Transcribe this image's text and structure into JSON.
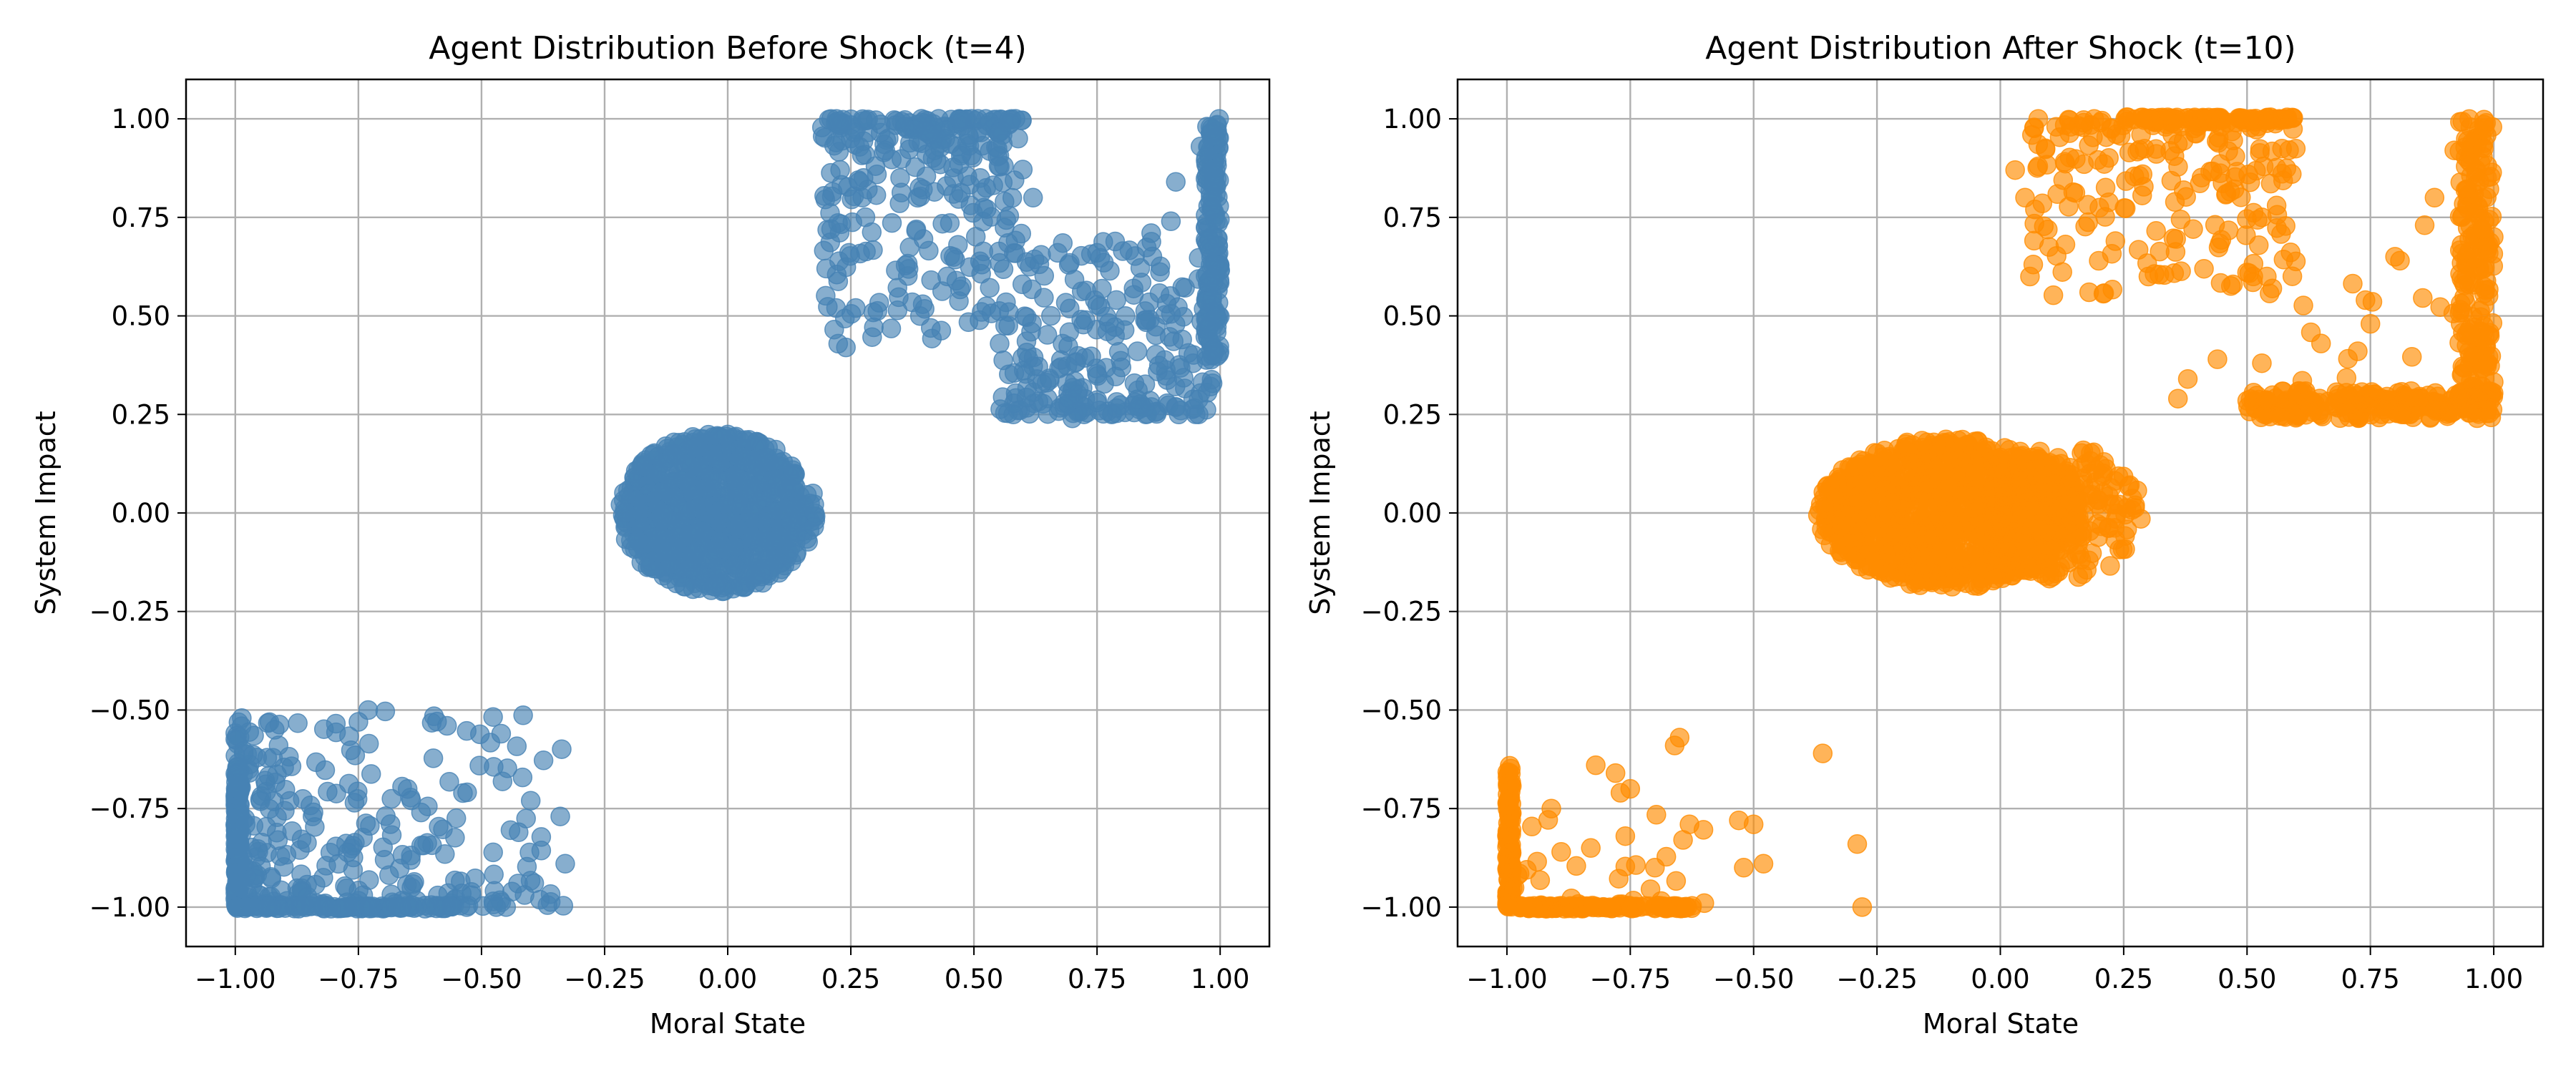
{
  "chart_data": [
    {
      "type": "scatter",
      "title": "Agent Distribution Before Shock (t=4)",
      "xlabel": "Moral State",
      "ylabel": "System Impact",
      "xlim": [
        -1.1,
        1.1
      ],
      "ylim": [
        -1.1,
        1.1
      ],
      "grid": true,
      "color": "#4682b4",
      "alpha": 0.65,
      "x_ticks": [
        -1.0,
        -0.75,
        -0.5,
        -0.25,
        0.0,
        0.25,
        0.5,
        0.75,
        1.0
      ],
      "y_ticks": [
        -1.0,
        -0.75,
        -0.5,
        -0.25,
        0.0,
        0.25,
        0.5,
        0.75,
        1.0
      ],
      "x_tick_labels": [
        "−1.00",
        "−0.75",
        "−0.50",
        "−0.25",
        "0.00",
        "0.25",
        "0.50",
        "0.75",
        "1.00"
      ],
      "y_tick_labels": [
        "−1.00",
        "−0.75",
        "−0.50",
        "−0.25",
        "0.00",
        "0.25",
        "0.50",
        "0.75",
        "1.00"
      ],
      "clusters": [
        {
          "shape": "ellipse",
          "center": [
            -0.02,
            0.0
          ],
          "radii": [
            0.2,
            0.2
          ],
          "count": 900
        },
        {
          "shape": "box",
          "x": [
            -1.0,
            -0.33
          ],
          "y": [
            -1.0,
            -0.5
          ],
          "count": 300,
          "skew": "low-left"
        },
        {
          "shape": "box",
          "x": [
            -1.0,
            -0.99
          ],
          "y": [
            -1.0,
            -0.64
          ],
          "count": 110
        },
        {
          "shape": "hline",
          "x": [
            -1.0,
            -0.55
          ],
          "y": -1.0,
          "count": 90
        },
        {
          "shape": "box",
          "x": [
            0.19,
            0.6
          ],
          "y": [
            0.42,
            1.0
          ],
          "count": 280,
          "skew": "high"
        },
        {
          "shape": "box",
          "x": [
            0.55,
            1.0
          ],
          "y": [
            0.25,
            0.7
          ],
          "count": 240,
          "skew": "low"
        },
        {
          "shape": "box",
          "x": [
            0.97,
            1.0
          ],
          "y": [
            0.38,
            1.0
          ],
          "count": 160
        }
      ],
      "points": [
        [
          -0.92,
          -0.55
        ],
        [
          -0.73,
          -0.5
        ],
        [
          -0.75,
          -0.53
        ],
        [
          -0.57,
          -0.54
        ],
        [
          -0.46,
          -0.56
        ],
        [
          -0.45,
          -1.0
        ],
        [
          -0.47,
          -1.0
        ],
        [
          -0.34,
          -0.77
        ],
        [
          -0.33,
          -0.89
        ],
        [
          -0.4,
          -0.73
        ],
        [
          -0.52,
          -0.97
        ],
        [
          -0.53,
          -1.0
        ],
        [
          0.24,
          0.42
        ],
        [
          0.47,
          1.0
        ],
        [
          0.59,
          0.95
        ],
        [
          0.41,
          0.96
        ],
        [
          0.22,
          0.94
        ],
        [
          0.25,
          0.95
        ],
        [
          0.67,
          0.66
        ],
        [
          0.75,
          0.66
        ],
        [
          0.86,
          0.71
        ],
        [
          0.9,
          0.74
        ],
        [
          0.91,
          0.84
        ],
        [
          0.96,
          0.93
        ],
        [
          0.85,
          0.49
        ],
        [
          0.62,
          0.8
        ],
        [
          0.55,
          0.88
        ],
        [
          0.42,
          0.92
        ],
        [
          0.35,
          0.85
        ],
        [
          0.32,
          0.92
        ],
        [
          0.3,
          0.88
        ],
        [
          0.21,
          0.72
        ],
        [
          0.2,
          0.62
        ],
        [
          0.22,
          0.52
        ],
        [
          0.26,
          0.52
        ],
        [
          0.58,
          0.25
        ],
        [
          0.7,
          0.24
        ],
        [
          0.78,
          0.25
        ],
        [
          0.92,
          0.26
        ],
        [
          0.75,
          0.28
        ]
      ]
    },
    {
      "type": "scatter",
      "title": "Agent Distribution After Shock (t=10)",
      "xlabel": "Moral State",
      "ylabel": "System Impact",
      "xlim": [
        -1.1,
        1.1
      ],
      "ylim": [
        -1.1,
        1.1
      ],
      "grid": true,
      "color": "#ff8c00",
      "alpha": 0.65,
      "x_ticks": [
        -1.0,
        -0.75,
        -0.5,
        -0.25,
        0.0,
        0.25,
        0.5,
        0.75,
        1.0
      ],
      "y_ticks": [
        -1.0,
        -0.75,
        -0.5,
        -0.25,
        0.0,
        0.25,
        0.5,
        0.75,
        1.0
      ],
      "x_tick_labels": [
        "−1.00",
        "−0.75",
        "−0.50",
        "−0.25",
        "0.00",
        "0.25",
        "0.50",
        "0.75",
        "1.00"
      ],
      "y_tick_labels": [
        "−1.00",
        "−0.75",
        "−0.50",
        "−0.25",
        "0.00",
        "0.25",
        "0.50",
        "0.75",
        "1.00"
      ],
      "clusters": [
        {
          "shape": "ellipse",
          "center": [
            -0.1,
            0.0
          ],
          "radii": [
            0.27,
            0.19
          ],
          "count": 1100
        },
        {
          "shape": "ellipse",
          "center": [
            0.12,
            0.0
          ],
          "radii": [
            0.17,
            0.17
          ],
          "count": 180
        },
        {
          "shape": "box",
          "x": [
            -1.0,
            -0.99
          ],
          "y": [
            -1.0,
            -0.64
          ],
          "count": 110
        },
        {
          "shape": "hline",
          "x": [
            -1.0,
            -0.62
          ],
          "y": -1.0,
          "count": 110
        },
        {
          "shape": "box",
          "x": [
            -1.0,
            -0.6
          ],
          "y": [
            -1.0,
            -0.75
          ],
          "count": 40,
          "skew": "low-left"
        },
        {
          "shape": "box",
          "x": [
            0.06,
            0.6
          ],
          "y": [
            0.55,
            1.0
          ],
          "count": 220,
          "skew": "high"
        },
        {
          "shape": "hline",
          "x": [
            0.25,
            0.6
          ],
          "y": 1.0,
          "count": 70
        },
        {
          "shape": "box",
          "x": [
            0.5,
            1.0
          ],
          "y": [
            0.24,
            0.31
          ],
          "count": 230
        },
        {
          "shape": "box",
          "x": [
            0.93,
            1.0
          ],
          "y": [
            0.25,
            1.0
          ],
          "count": 200
        },
        {
          "shape": "box",
          "x": [
            0.6,
            0.95
          ],
          "y": [
            0.25,
            0.6
          ],
          "count": 30,
          "skew": "low"
        }
      ],
      "points": [
        [
          -0.65,
          -0.57
        ],
        [
          -0.66,
          -0.59
        ],
        [
          -0.36,
          -0.61
        ],
        [
          -0.29,
          -0.84
        ],
        [
          -0.28,
          -1.0
        ],
        [
          -0.5,
          -0.79
        ],
        [
          -0.53,
          -0.78
        ],
        [
          -0.48,
          -0.89
        ],
        [
          -0.52,
          -0.9
        ],
        [
          -0.63,
          -0.79
        ],
        [
          -0.75,
          -0.7
        ],
        [
          -0.77,
          -0.71
        ],
        [
          -0.82,
          -0.64
        ],
        [
          -0.78,
          -0.66
        ],
        [
          -0.76,
          -0.82
        ],
        [
          -0.7,
          -0.9
        ],
        [
          -0.6,
          -0.99
        ],
        [
          -0.91,
          -0.75
        ],
        [
          -0.83,
          -0.85
        ],
        [
          -0.89,
          -0.86
        ],
        [
          0.06,
          0.6
        ],
        [
          0.03,
          0.87
        ],
        [
          0.05,
          0.8
        ],
        [
          0.07,
          0.77
        ],
        [
          0.18,
          0.56
        ],
        [
          0.3,
          0.6
        ],
        [
          0.5,
          0.61
        ],
        [
          0.54,
          0.6
        ],
        [
          0.53,
          0.75
        ],
        [
          0.56,
          0.78
        ],
        [
          0.36,
          0.29
        ],
        [
          0.38,
          0.34
        ],
        [
          0.44,
          0.39
        ],
        [
          0.53,
          0.38
        ],
        [
          0.65,
          0.43
        ],
        [
          0.75,
          0.48
        ],
        [
          0.74,
          0.54
        ],
        [
          0.81,
          0.64
        ],
        [
          0.86,
          0.73
        ],
        [
          0.88,
          0.8
        ],
        [
          0.8,
          0.65
        ],
        [
          0.92,
          0.92
        ]
      ]
    }
  ]
}
